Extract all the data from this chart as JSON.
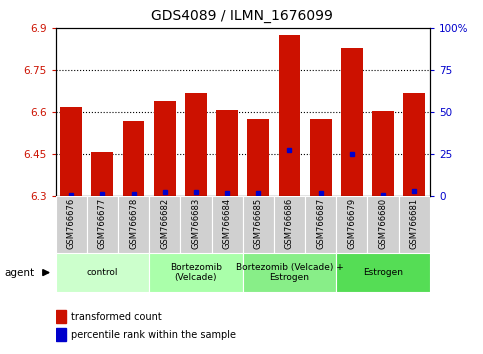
{
  "title": "GDS4089 / ILMN_1676099",
  "samples": [
    "GSM766676",
    "GSM766677",
    "GSM766678",
    "GSM766682",
    "GSM766683",
    "GSM766684",
    "GSM766685",
    "GSM766686",
    "GSM766687",
    "GSM766679",
    "GSM766680",
    "GSM766681"
  ],
  "bar_values": [
    6.62,
    6.46,
    6.57,
    6.64,
    6.67,
    6.61,
    6.575,
    6.875,
    6.575,
    6.83,
    6.605,
    6.67
  ],
  "blue_marker_values": [
    6.305,
    6.31,
    6.308,
    6.315,
    6.316,
    6.312,
    6.312,
    6.465,
    6.312,
    6.452,
    6.307,
    6.32
  ],
  "bar_base": 6.3,
  "ylim_left": [
    6.3,
    6.9
  ],
  "ylim_right": [
    0,
    100
  ],
  "yticks_left": [
    6.3,
    6.45,
    6.6,
    6.75,
    6.9
  ],
  "yticks_right": [
    0,
    25,
    50,
    75,
    100
  ],
  "ytick_labels_left": [
    "6.3",
    "6.45",
    "6.6",
    "6.75",
    "6.9"
  ],
  "ytick_labels_right": [
    "0",
    "25",
    "50",
    "75",
    "100%"
  ],
  "groups": [
    {
      "label": "control",
      "start": 0,
      "end": 3,
      "color": "#ccffcc"
    },
    {
      "label": "Bortezomib\n(Velcade)",
      "start": 3,
      "end": 6,
      "color": "#aaffaa"
    },
    {
      "label": "Bortezomib (Velcade) +\nEstrogen",
      "start": 6,
      "end": 9,
      "color": "#88ee88"
    },
    {
      "label": "Estrogen",
      "start": 9,
      "end": 12,
      "color": "#55dd55"
    }
  ],
  "agent_label": "agent",
  "bar_color": "#cc1100",
  "marker_color": "#0000cc",
  "bar_width": 0.7,
  "legend_labels": [
    "transformed count",
    "percentile rank within the sample"
  ],
  "plot_bg": "#ffffff",
  "left_tick_color": "#cc1100",
  "right_tick_color": "#0000cc",
  "grid_yticks": [
    6.45,
    6.6,
    6.75
  ],
  "sample_box_color": "#d0d0d0"
}
